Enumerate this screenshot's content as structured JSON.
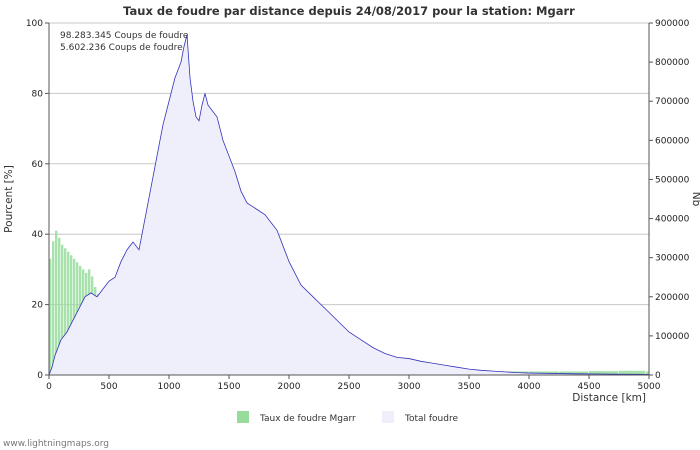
{
  "chart_data": {
    "type": "bar",
    "title": "Taux de foudre par distance depuis 24/08/2017 pour la station: Mgarr",
    "xlabel": "Distance   [km]",
    "ylabel_left": "Pourcent   [%]",
    "ylabel_right": "Nb",
    "xlim": [
      0,
      5000
    ],
    "ylim_left": [
      0,
      100
    ],
    "ylim_right": [
      0,
      900000
    ],
    "x_ticks": [
      "0",
      "500",
      "1000",
      "1500",
      "2000",
      "2500",
      "3000",
      "3500",
      "4000",
      "4500",
      "5000"
    ],
    "y_ticks_left": [
      "0",
      "20",
      "40",
      "60",
      "80",
      "100"
    ],
    "y_ticks_right": [
      "0",
      "100000",
      "200000",
      "300000",
      "400000",
      "500000",
      "600000",
      "700000",
      "800000",
      "900000"
    ],
    "grid": true,
    "annotations": [
      "98.283.345  Coups de foudre",
      "5.602.236  Coups de foudre"
    ],
    "legend": [
      "Taux de foudre Mgarr",
      "Total foudre"
    ],
    "series": [
      {
        "name": "Taux de foudre Mgarr",
        "kind": "bar",
        "axis": "left",
        "color": "#98dc9c",
        "bin_width": 25,
        "x": [
          0,
          25,
          50,
          75,
          100,
          125,
          150,
          175,
          200,
          225,
          250,
          275,
          300,
          325,
          350,
          375,
          400,
          425,
          450,
          475,
          500,
          525,
          550,
          575,
          600,
          625,
          650,
          675,
          700,
          725,
          750,
          775,
          800,
          825,
          850,
          875,
          900,
          925,
          950,
          975,
          1000,
          1050,
          1100,
          1150,
          1200,
          1250,
          1300,
          1350,
          1400,
          1450,
          1500,
          1600,
          1700,
          1800,
          1900,
          2000,
          2100,
          2200,
          2300,
          2400,
          2500,
          2750,
          3000,
          3250,
          3500,
          3750,
          4000,
          4250,
          4500,
          4750,
          4975
        ],
        "values": [
          33,
          38,
          41,
          39,
          37,
          36,
          35,
          34,
          33,
          32,
          31,
          30,
          29,
          30,
          28,
          25,
          23,
          21,
          19,
          18,
          17,
          16,
          15,
          14,
          14,
          13,
          13,
          12,
          12,
          11,
          11,
          10,
          10,
          9,
          9,
          8,
          8,
          8,
          7,
          7,
          6,
          5.5,
          5,
          5,
          4.5,
          4,
          4,
          3.5,
          3.5,
          3,
          3,
          2.8,
          2.6,
          2.4,
          2.2,
          2,
          2,
          1.8,
          1.6,
          1.5,
          1.3,
          1.2,
          1.1,
          1,
          1,
          1,
          1,
          1,
          1.1,
          1.2,
          1
        ]
      },
      {
        "name": "Total foudre",
        "kind": "area",
        "axis": "right",
        "color": "#3333bb",
        "fill": "#efeffb",
        "x": [
          0,
          25,
          50,
          75,
          100,
          150,
          200,
          250,
          300,
          350,
          400,
          450,
          500,
          550,
          600,
          650,
          700,
          750,
          800,
          850,
          900,
          950,
          1000,
          1050,
          1100,
          1125,
          1150,
          1175,
          1200,
          1225,
          1250,
          1275,
          1300,
          1325,
          1350,
          1400,
          1450,
          1500,
          1550,
          1600,
          1650,
          1700,
          1750,
          1800,
          1850,
          1900,
          1950,
          2000,
          2050,
          2100,
          2200,
          2300,
          2400,
          2500,
          2600,
          2700,
          2800,
          2900,
          3000,
          3100,
          3200,
          3300,
          3400,
          3500,
          3600,
          3700,
          3800,
          3900,
          4000,
          4200,
          4400,
          4600,
          4800,
          5000
        ],
        "values": [
          0,
          20000,
          50000,
          70000,
          90000,
          110000,
          140000,
          170000,
          200000,
          210000,
          200000,
          220000,
          240000,
          250000,
          290000,
          320000,
          340000,
          320000,
          400000,
          480000,
          560000,
          640000,
          700000,
          760000,
          800000,
          840000,
          870000,
          760000,
          700000,
          660000,
          650000,
          690000,
          720000,
          690000,
          680000,
          660000,
          600000,
          560000,
          520000,
          470000,
          440000,
          430000,
          420000,
          410000,
          390000,
          370000,
          330000,
          290000,
          260000,
          230000,
          200000,
          170000,
          140000,
          110000,
          90000,
          70000,
          55000,
          45000,
          42000,
          35000,
          30000,
          25000,
          20000,
          15000,
          12000,
          10000,
          8000,
          6000,
          5000,
          4000,
          3000,
          2500,
          2000,
          1500
        ]
      }
    ]
  },
  "footer": "www.lightningmaps.org"
}
